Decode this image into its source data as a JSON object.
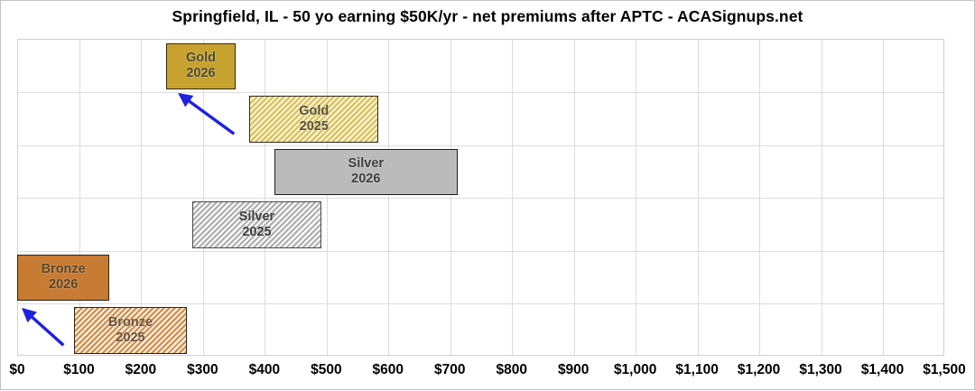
{
  "chart_data": {
    "type": "bar",
    "subtype": "horizontal-range-bars",
    "title": "Springfield, IL - 50 yo earning $50K/yr - net premiums after APTC - ACASignups.net",
    "xlabel": "",
    "ylabel": "",
    "xlim": [
      0,
      1500
    ],
    "x_tick_values": [
      0,
      100,
      200,
      300,
      400,
      500,
      600,
      700,
      800,
      900,
      1000,
      1100,
      1200,
      1300,
      1400,
      1500
    ],
    "x_tick_labels": [
      "$0",
      "$100",
      "$200",
      "$300",
      "$400",
      "$500",
      "$600",
      "$700",
      "$800",
      "$900",
      "$1,000",
      "$1,100",
      "$1,200",
      "$1,300",
      "$1,400",
      "$1,500"
    ],
    "grid": true,
    "legend": "none",
    "rows": 6,
    "bars": [
      {
        "name": "Gold 2026",
        "label_lines": [
          "Gold",
          "2026"
        ],
        "row": 0,
        "start": 241,
        "end": 352,
        "pattern": "solid",
        "fill": "#C7A22F",
        "stripe": "",
        "border": "#2e2a1a",
        "label_color": "#4f4a35"
      },
      {
        "name": "Gold 2025",
        "label_lines": [
          "Gold",
          "2025"
        ],
        "row": 1,
        "start": 376,
        "end": 583,
        "pattern": "diagonal-stripes",
        "fill": "#FBF4D6",
        "stripe": "#D9BE57",
        "border": "#2e2a1a",
        "label_color": "#58533c"
      },
      {
        "name": "Silver 2026",
        "label_lines": [
          "Silver",
          "2026"
        ],
        "row": 2,
        "start": 416,
        "end": 711,
        "pattern": "solid",
        "fill": "#BBBBBB",
        "stripe": "",
        "border": "#1f1f1f",
        "label_color": "#404040"
      },
      {
        "name": "Silver 2025",
        "label_lines": [
          "Silver",
          "2025"
        ],
        "row": 3,
        "start": 283,
        "end": 491,
        "pattern": "diagonal-stripes",
        "fill": "#FAFAFA",
        "stripe": "#ADADAD",
        "border": "#4a4a4a",
        "label_color": "#3f3f3f"
      },
      {
        "name": "Bronze 2026",
        "label_lines": [
          "Bronze",
          "2026"
        ],
        "row": 4,
        "start": 0,
        "end": 148,
        "pattern": "solid",
        "fill": "#C77B33",
        "stripe": "",
        "border": "#2e2415",
        "label_color": "#5c4526"
      },
      {
        "name": "Bronze 2025",
        "label_lines": [
          "Bronze",
          "2025"
        ],
        "row": 5,
        "start": 92,
        "end": 273,
        "pattern": "diagonal-stripes",
        "fill": "#FAEFDE",
        "stripe": "#D28A4A",
        "border": "#2e2415",
        "label_color": "#6a573f"
      }
    ],
    "annotations": {
      "arrow_color": "#2020E0",
      "arrows": [
        {
          "name": "gold-2025-to-2026-arrow",
          "x1": 351,
          "y1_row": 1.8,
          "x2": 263,
          "y2_row": 1.05
        },
        {
          "name": "bronze-2025-to-2026-arrow",
          "x1": 75,
          "y1_row": 5.8,
          "x2": 10,
          "y2_row": 5.12
        }
      ]
    },
    "colors": {
      "gridline": "#dcdcdc",
      "plot_border": "#d2d2d2",
      "axis_label": "#000000",
      "title": "#000000"
    }
  }
}
